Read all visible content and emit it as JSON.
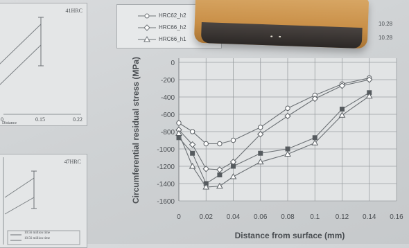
{
  "left_top_plot": {
    "title": "41HRC",
    "x_ticks": [
      "0",
      "0.15",
      "0.22"
    ],
    "x_caption": "Distance"
  },
  "left_bottom_plot": {
    "title": "47HRC",
    "legend": [
      "10.56 million time",
      "10.56 million time"
    ]
  },
  "legend_box": {
    "entries": [
      {
        "marker": "circle",
        "label": "HRC62_h2"
      },
      {
        "marker": "diamond",
        "label": "HRC66_h2"
      },
      {
        "marker": "triangle",
        "label": "HRC66_h1"
      }
    ],
    "side_labels": [
      "10.28",
      "10.28"
    ]
  },
  "chart_data": {
    "type": "line",
    "ylabel": "Circumferential residual stress (MPa)",
    "xlabel": "Distance from surface (mm)",
    "xlim": [
      0,
      0.16
    ],
    "ylim": [
      -1600,
      0
    ],
    "x_ticks": [
      "0",
      "0.02",
      "0.04",
      "0.06",
      "0.08",
      "0.1",
      "0.12",
      "0.14",
      "0.16"
    ],
    "y_ticks": [
      "0",
      "-200",
      "-400",
      "-600",
      "-800",
      "-1000",
      "-1200",
      "-1400",
      "-1600"
    ],
    "grid": true,
    "series": [
      {
        "marker": "circle",
        "fill": "#ffffff",
        "x": [
          0,
          0.01,
          0.02,
          0.03,
          0.04,
          0.06,
          0.08,
          0.1,
          0.12,
          0.14
        ],
        "y": [
          -700,
          -800,
          -940,
          -940,
          -900,
          -750,
          -530,
          -380,
          -250,
          -180
        ]
      },
      {
        "marker": "diamond",
        "fill": "#ffffff",
        "x": [
          0,
          0.01,
          0.02,
          0.03,
          0.04,
          0.06,
          0.08,
          0.1,
          0.12,
          0.14
        ],
        "y": [
          -780,
          -950,
          -1230,
          -1240,
          -1150,
          -830,
          -620,
          -420,
          -270,
          -200
        ]
      },
      {
        "marker": "square",
        "fill": "#555a5e",
        "x": [
          0,
          0.01,
          0.02,
          0.03,
          0.04,
          0.06,
          0.08,
          0.1,
          0.12,
          0.14
        ],
        "y": [
          -870,
          -1050,
          -1400,
          -1300,
          -1200,
          -1050,
          -1000,
          -870,
          -540,
          -350
        ]
      },
      {
        "marker": "triangle",
        "fill": "#ffffff",
        "x": [
          0,
          0.01,
          0.02,
          0.03,
          0.04,
          0.06,
          0.08,
          0.1,
          0.12,
          0.14
        ],
        "y": [
          -820,
          -1200,
          -1440,
          -1430,
          -1320,
          -1150,
          -1060,
          -930,
          -610,
          -390
        ]
      }
    ]
  }
}
